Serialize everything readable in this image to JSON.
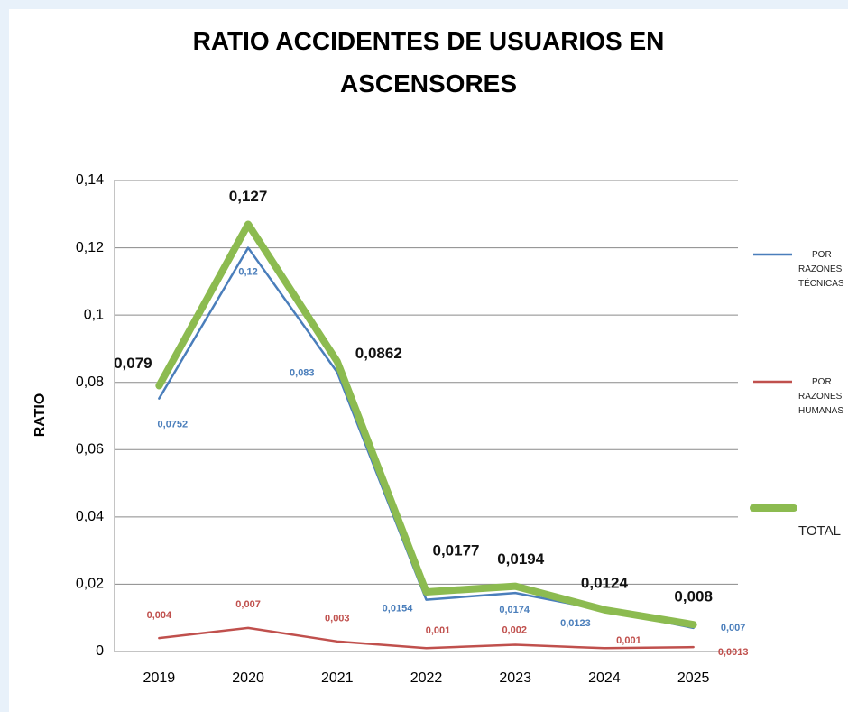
{
  "chart_data": {
    "type": "line",
    "title": "RATIO ACCIDENTES DE USUARIOS EN ASCENSORES",
    "y_label": "RATIO",
    "categories": [
      "2019",
      "2020",
      "2021",
      "2022",
      "2023",
      "2024",
      "2025"
    ],
    "series": [
      {
        "name": "POR RAZONES TÉCNICAS",
        "color": "#4a7ebb",
        "values": [
          0.0752,
          0.12,
          0.083,
          0.0154,
          0.0174,
          0.0123,
          0.007
        ],
        "value_labels": [
          "0,0752",
          "0,12",
          "0,083",
          "0,0154",
          "0,0174",
          "0,0123",
          "0,007"
        ]
      },
      {
        "name": "POR RAZONES HUMANAS",
        "color": "#c0504d",
        "values": [
          0.004,
          0.007,
          0.003,
          0.001,
          0.002,
          0.001,
          0.0013
        ],
        "value_labels": [
          "0,004",
          "0,007",
          "0,003",
          "0,001",
          "0,002",
          "0,001",
          "0,0013"
        ]
      },
      {
        "name": "TOTAL",
        "color": "#8cbb50",
        "values": [
          0.079,
          0.127,
          0.0862,
          0.0177,
          0.0194,
          0.0124,
          0.008
        ],
        "value_labels": [
          "0,079",
          "0,127",
          "0,0862",
          "0,0177",
          "0,0194",
          "0,0124",
          "0,008"
        ]
      }
    ],
    "ylim": [
      0,
      0.14
    ],
    "yticks": [
      0,
      {
        "value": 0.02,
        "label": "0,02"
      },
      {
        "value": 0.04,
        "label": "0,04"
      },
      {
        "value": 0.06,
        "label": "0,06"
      },
      {
        "value": 0.08,
        "label": "0,08"
      },
      {
        "value": 0.1,
        "label": "0,1"
      },
      {
        "value": 0.12,
        "label": "0,12"
      },
      {
        "value": 0.14,
        "label": "0,14"
      }
    ],
    "grid": true,
    "legend": "right"
  }
}
